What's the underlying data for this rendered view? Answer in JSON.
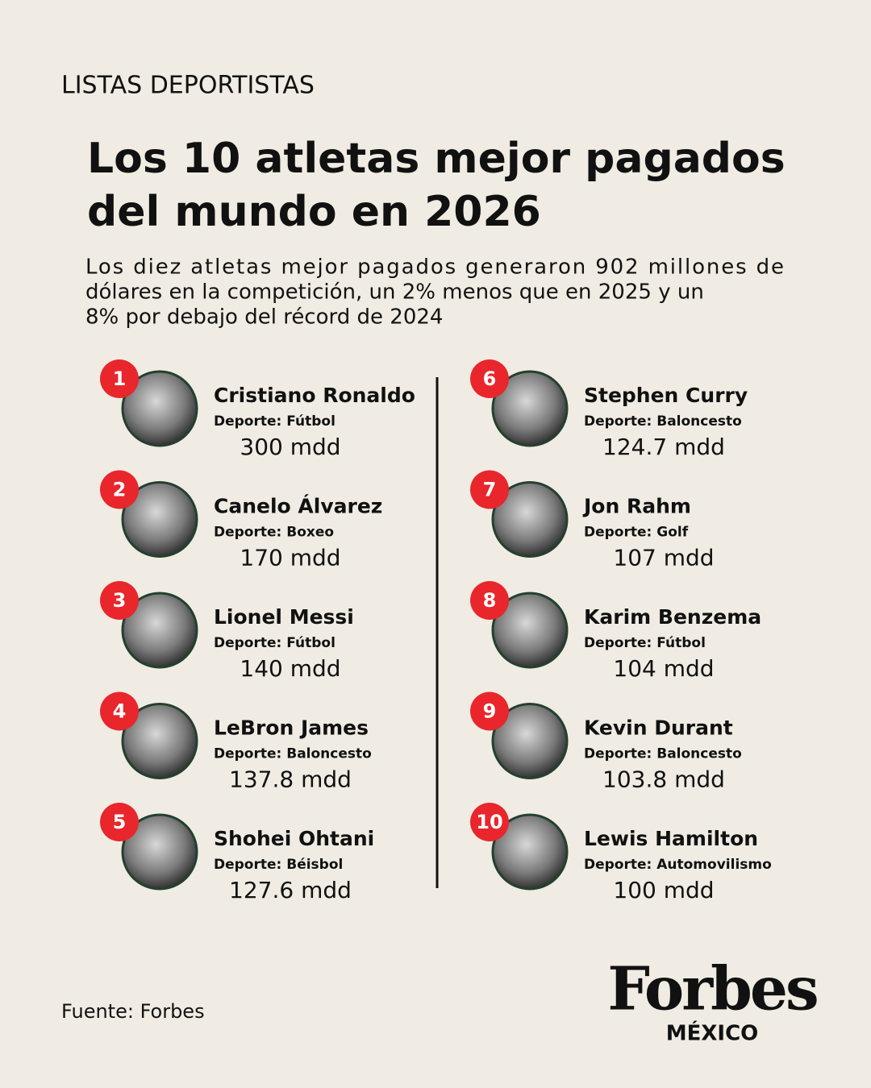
{
  "header": {
    "category": "LISTAS DEPORTISTAS",
    "title_lines": [
      "Los 10 atletas  mejor pagados",
      "del mundo en 2026"
    ],
    "subtitle_lines": [
      "Los diez atletas mejor pagados generaron 902 millones de",
      "dólares en la competición, un 2% menos que en 2025 y un",
      "8% por debajo del récord de 2024"
    ]
  },
  "athletes": [
    {
      "rank": "1",
      "name": "Cristiano Ronaldo",
      "sport": "Deporte: Fútbol",
      "earnings": "300 mdd"
    },
    {
      "rank": "2",
      "name": "Canelo Álvarez",
      "sport": "Deporte: Boxeo",
      "earnings": "170 mdd"
    },
    {
      "rank": "3",
      "name": "Lionel Messi",
      "sport": "Deporte: Fútbol",
      "earnings": "140 mdd"
    },
    {
      "rank": "4",
      "name": "LeBron James",
      "sport": "Deporte: Baloncesto",
      "earnings": "137.8 mdd"
    },
    {
      "rank": "5",
      "name": "Shohei Ohtani",
      "sport": "Deporte: Béisbol",
      "earnings": "127.6 mdd"
    },
    {
      "rank": "6",
      "name": "Stephen Curry",
      "sport": "Deporte: Baloncesto",
      "earnings": "124.7 mdd"
    },
    {
      "rank": "7",
      "name": "Jon Rahm",
      "sport": "Deporte: Golf",
      "earnings": "107 mdd"
    },
    {
      "rank": "8",
      "name": "Karim Benzema",
      "sport": "Deporte: Fútbol",
      "earnings": "104 mdd"
    },
    {
      "rank": "9",
      "name": "Kevin Durant",
      "sport": "Deporte: Baloncesto",
      "earnings": "103.8 mdd"
    },
    {
      "rank": "10",
      "name": "Lewis Hamilton",
      "sport": "Deporte: Automovilismo",
      "earnings": "100 mdd"
    }
  ],
  "footer": {
    "source": "Fuente: Forbes",
    "logo": "Forbes",
    "logo_sub": "MÉXICO"
  }
}
